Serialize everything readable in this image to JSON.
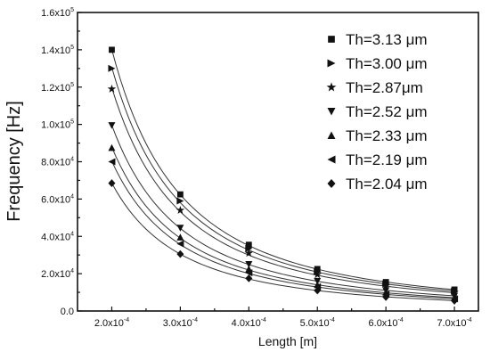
{
  "chart_data": {
    "type": "scatter",
    "xlabel": "Length [m]",
    "ylabel": "Frequency [Hz]",
    "xlim": [
      0.00015,
      0.000735
    ],
    "ylim": [
      0,
      160000
    ],
    "x_ticks": [
      0.0002,
      0.0003,
      0.0004,
      0.0005,
      0.0006,
      0.0007
    ],
    "x_tick_labels": [
      {
        "mantissa": "2.0x10",
        "exp": "-4"
      },
      {
        "mantissa": "3.0x10",
        "exp": "-4"
      },
      {
        "mantissa": "4.0x10",
        "exp": "-4"
      },
      {
        "mantissa": "5.0x10",
        "exp": "-4"
      },
      {
        "mantissa": "6.0x10",
        "exp": "-4"
      },
      {
        "mantissa": "7.0x10",
        "exp": "-4"
      }
    ],
    "y_ticks": [
      0,
      20000,
      40000,
      60000,
      80000,
      100000,
      120000,
      140000,
      160000
    ],
    "y_tick_labels": [
      {
        "mantissa": "0.0",
        "exp": ""
      },
      {
        "mantissa": "2.0x10",
        "exp": "4"
      },
      {
        "mantissa": "4.0x10",
        "exp": "4"
      },
      {
        "mantissa": "6.0x10",
        "exp": "4"
      },
      {
        "mantissa": "8.0x10",
        "exp": "4"
      },
      {
        "mantissa": "1.0x10",
        "exp": "5"
      },
      {
        "mantissa": "1.2x10",
        "exp": "5"
      },
      {
        "mantissa": "1.4x10",
        "exp": "5"
      },
      {
        "mantissa": "1.6x10",
        "exp": "5"
      }
    ],
    "x": [
      0.0002,
      0.0003,
      0.0004,
      0.0005,
      0.0006,
      0.0007
    ],
    "legend_position": "top-right",
    "fit_curves": true,
    "series": [
      {
        "name": "Th=3.13 μm",
        "marker": "square",
        "values": [
          140000,
          62500,
          35500,
          22500,
          15500,
          11500
        ]
      },
      {
        "name": "Th=3.00 μm",
        "marker": "triangle-right",
        "values": [
          130000,
          59000,
          33500,
          21000,
          14500,
          10500
        ]
      },
      {
        "name": "Th=2.87μm",
        "marker": "star",
        "values": [
          119000,
          54000,
          31000,
          19500,
          13500,
          10000
        ]
      },
      {
        "name": "Th=2.52 μm",
        "marker": "triangle-down",
        "values": [
          99500,
          44500,
          25000,
          16000,
          11000,
          8000
        ]
      },
      {
        "name": "Th=2.33 μm",
        "marker": "triangle-up",
        "values": [
          87500,
          39500,
          22500,
          14000,
          10000,
          7000
        ]
      },
      {
        "name": "Th=2.19 μm",
        "marker": "triangle-left",
        "values": [
          80000,
          36000,
          20500,
          13000,
          9000,
          6500
        ]
      },
      {
        "name": "Th=2.04 μm",
        "marker": "diamond",
        "values": [
          68500,
          30500,
          17500,
          11000,
          7500,
          5500
        ]
      }
    ]
  }
}
